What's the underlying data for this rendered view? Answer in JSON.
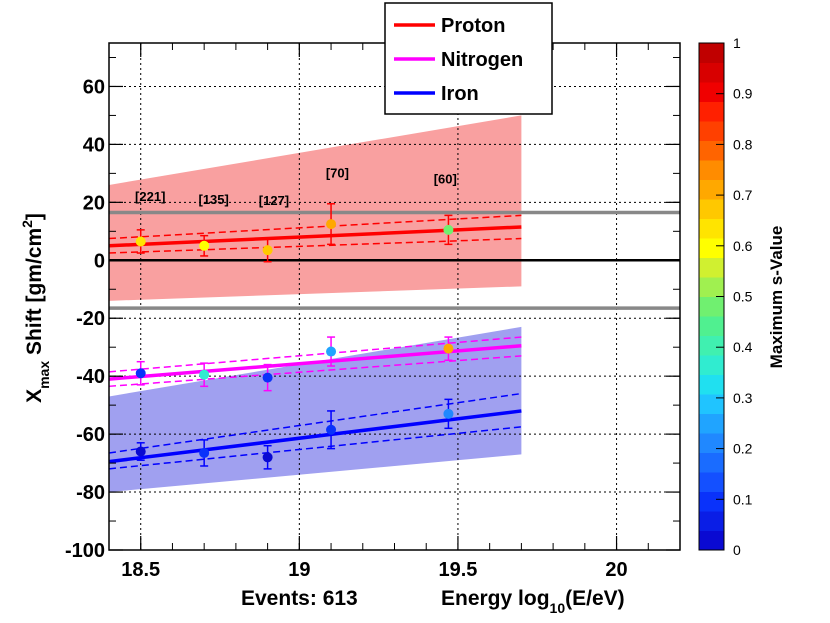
{
  "chart_data": {
    "type": "scatter",
    "title": "",
    "xlabel": "Energy  log10(E/eV)",
    "xlabel_main": "Energy  log",
    "xlabel_sub": "10",
    "xlabel_tail": "(E/eV)",
    "ylabel": "Xmax  Shift  [gm/cm2]",
    "ylabel_main": "X",
    "ylabel_sub": "max",
    "ylabel_mid": " Shift  [gm/cm",
    "ylabel_sup": "2",
    "ylabel_tail": "]",
    "events_label": "Events: 613",
    "xlim": [
      18.4,
      20.2
    ],
    "ylim": [
      -100,
      75
    ],
    "grid": true,
    "x_ticks": [
      18.5,
      19,
      19.5,
      20
    ],
    "x_tick_labels": [
      "18.5",
      "19",
      "19.5",
      "20"
    ],
    "y_ticks": [
      -100,
      -80,
      -60,
      -40,
      -20,
      0,
      20,
      40,
      60
    ],
    "y_tick_labels": [
      "-100",
      "-80",
      "-60",
      "-40",
      "-20",
      "0",
      "20",
      "40",
      "60"
    ],
    "x_minor_step": 0.1,
    "y_minor_step": 10,
    "reference_lines": [
      {
        "y": 0,
        "color": "#000000"
      },
      {
        "y": 16.5,
        "color": "#888888"
      },
      {
        "y": -16.5,
        "color": "#888888"
      }
    ],
    "bands": [
      {
        "name": "Proton systematic band",
        "color": "#f9a0a0",
        "x": [
          18.4,
          19.7
        ],
        "upper": [
          26,
          50
        ],
        "lower": [
          -14,
          -9
        ]
      },
      {
        "name": "Iron systematic band",
        "color": "#a0a0f0",
        "x": [
          18.4,
          19.7
        ],
        "upper": [
          -47,
          -23
        ],
        "lower": [
          -80,
          -67
        ]
      }
    ],
    "series": [
      {
        "name": "Proton",
        "color": "#ff0000",
        "fit": {
          "x": [
            18.4,
            19.7
          ],
          "y": [
            5.0,
            11.5
          ]
        },
        "fit_err_upper": {
          "x": [
            18.4,
            19.7
          ],
          "y": [
            7.5,
            15.5
          ]
        },
        "fit_err_lower": {
          "x": [
            18.4,
            19.7
          ],
          "y": [
            2.5,
            7.5
          ]
        },
        "points": [
          {
            "x": 18.5,
            "y": 6.5,
            "err": 4,
            "s": 0.62
          },
          {
            "x": 18.7,
            "y": 5.0,
            "err": 3.5,
            "s": 0.6
          },
          {
            "x": 18.9,
            "y": 3.5,
            "err": 4,
            "s": 0.66
          },
          {
            "x": 19.1,
            "y": 12.5,
            "err": 7,
            "s": 0.72
          },
          {
            "x": 19.47,
            "y": 10.5,
            "err": 5,
            "s": 0.48
          }
        ]
      },
      {
        "name": "Nitrogen",
        "color": "#ff00ff",
        "fit": {
          "x": [
            18.4,
            19.7
          ],
          "y": [
            -41.0,
            -29.5
          ]
        },
        "fit_err_upper": {
          "x": [
            18.4,
            19.7
          ],
          "y": [
            -38.5,
            -26.5
          ]
        },
        "fit_err_lower": {
          "x": [
            18.4,
            19.7
          ],
          "y": [
            -43.5,
            -33.0
          ]
        },
        "points": [
          {
            "x": 18.5,
            "y": -39.0,
            "err": 4,
            "s": 0.08
          },
          {
            "x": 18.7,
            "y": -39.5,
            "err": 4,
            "s": 0.36
          },
          {
            "x": 18.9,
            "y": -40.5,
            "err": 4.5,
            "s": 0.1
          },
          {
            "x": 19.1,
            "y": -31.5,
            "err": 5,
            "s": 0.26
          },
          {
            "x": 19.47,
            "y": -30.5,
            "err": 4,
            "s": 0.72
          }
        ]
      },
      {
        "name": "Iron",
        "color": "#0000ff",
        "fit": {
          "x": [
            18.4,
            19.7
          ],
          "y": [
            -69.5,
            -52.0
          ]
        },
        "fit_err_upper": {
          "x": [
            18.4,
            19.7
          ],
          "y": [
            -66.5,
            -46.0
          ]
        },
        "fit_err_lower": {
          "x": [
            18.4,
            19.7
          ],
          "y": [
            -72.0,
            -57.5
          ]
        },
        "points": [
          {
            "x": 18.5,
            "y": -66.0,
            "err": 3,
            "s": 0.0
          },
          {
            "x": 18.7,
            "y": -66.5,
            "err": 4.5,
            "s": 0.1
          },
          {
            "x": 18.9,
            "y": -68.0,
            "err": 4,
            "s": 0.0
          },
          {
            "x": 19.1,
            "y": -58.5,
            "err": 6.5,
            "s": 0.1
          },
          {
            "x": 19.47,
            "y": -53.0,
            "err": 5,
            "s": 0.2
          }
        ]
      }
    ],
    "annotations": [
      {
        "text": "[221]",
        "x": 18.53,
        "y": 20.5
      },
      {
        "text": "[135]",
        "x": 18.73,
        "y": 19.5
      },
      {
        "text": "[127]",
        "x": 18.92,
        "y": 19.0
      },
      {
        "text": "[70]",
        "x": 19.12,
        "y": 28.5
      },
      {
        "text": "[60]",
        "x": 19.46,
        "y": 26.5
      }
    ],
    "legend": {
      "position": "top-center",
      "entries": [
        {
          "label": "Proton",
          "color": "#ff0000"
        },
        {
          "label": "Nitrogen",
          "color": "#ff00ff"
        },
        {
          "label": "Iron",
          "color": "#0000ff"
        }
      ]
    },
    "colorbar": {
      "label": "Maximum s-Value",
      "range": [
        0,
        1
      ],
      "tick_labels": [
        "0",
        "0.1",
        "0.2",
        "0.3",
        "0.4",
        "0.5",
        "0.6",
        "0.7",
        "0.8",
        "0.9",
        "1"
      ],
      "colors": [
        "#0a0ad2",
        "#0a1ee6",
        "#0a32fa",
        "#1450ff",
        "#1a6cff",
        "#2088ff",
        "#20a4ff",
        "#20c4ff",
        "#20e0f0",
        "#30ecd0",
        "#40f0b0",
        "#50f090",
        "#70f070",
        "#a0f050",
        "#d0f030",
        "#ffff00",
        "#ffe400",
        "#ffc800",
        "#ffa800",
        "#ff8c00",
        "#ff6400",
        "#ff4000",
        "#ff2000",
        "#f00000",
        "#d80000",
        "#c00000"
      ]
    }
  }
}
